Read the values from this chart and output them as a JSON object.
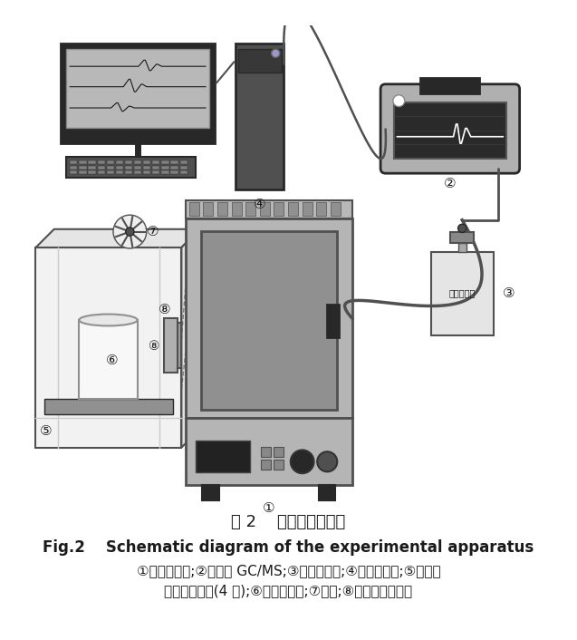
{
  "title_cn": "图 2    实验装置的示意",
  "title_en": "Fig.2    Schematic diagram of the experimental apparatus",
  "caption_line1": "①环境试验箱;②便携式 GC/MS;③气体采样袋;④电脑工作站;⑤环境试",
  "caption_line2": "验箱内部小室(4 个);⑥不锈钢烧杯;⑦风机;⑧玻璃转子流量计",
  "bg_color": "#ffffff",
  "fg_color": "#1a1a1a",
  "gray_light": "#c8c8c8",
  "gray_mid": "#909090",
  "gray_dark": "#505050",
  "gray_darker": "#282828",
  "gray_screen": "#707070",
  "white": "#ffffff",
  "title_cn_fontsize": 13,
  "title_en_fontsize": 12,
  "caption_fontsize": 11
}
